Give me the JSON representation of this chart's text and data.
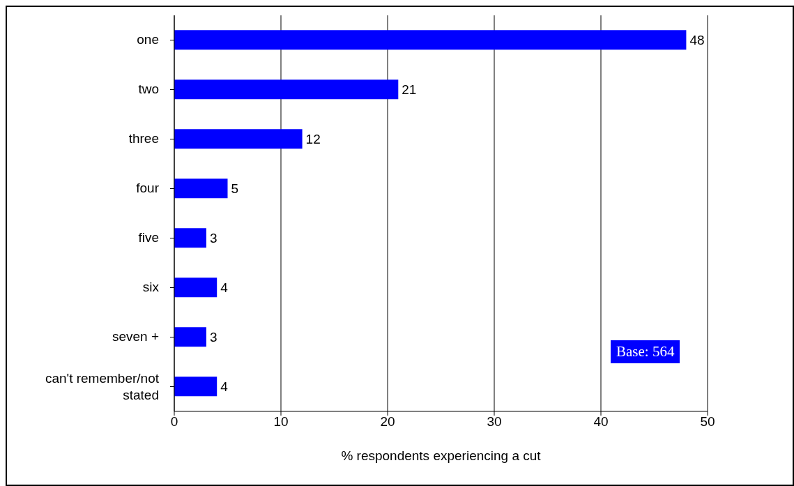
{
  "chart_data": {
    "type": "bar",
    "orientation": "horizontal",
    "categories": [
      "one",
      "two",
      "three",
      "four",
      "five",
      "six",
      "seven +",
      "can't remember/not stated"
    ],
    "values": [
      48,
      21,
      12,
      5,
      3,
      4,
      3,
      4
    ],
    "color": "#0000ff",
    "xlabel": "% respondents experiencing a cut",
    "xlim": [
      0,
      50
    ],
    "xticks": [
      0,
      10,
      20,
      30,
      40,
      50
    ],
    "grid": "x",
    "data_labels": true,
    "annotations": [
      "Base: 564"
    ]
  }
}
